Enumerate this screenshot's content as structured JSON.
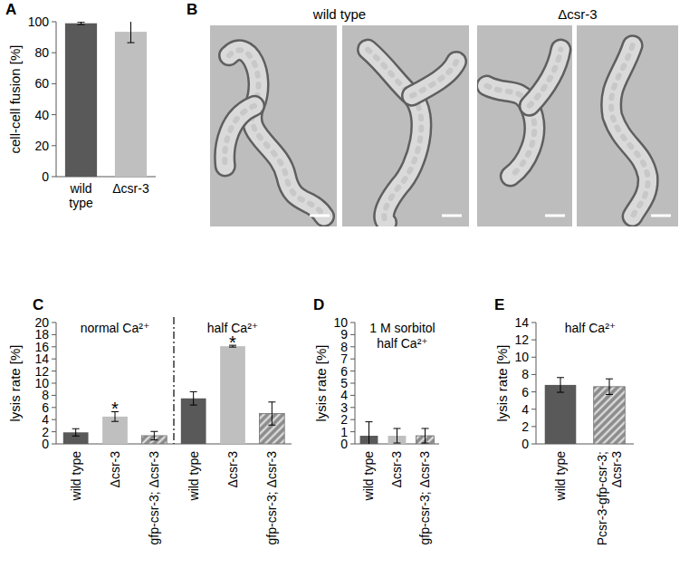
{
  "chart_data": [
    {
      "type": "bar",
      "panel_label": "A",
      "y_label": "cell-cell fusion [%]",
      "categories": [
        "wild type",
        "Δcsr-3"
      ],
      "values": [
        99,
        93.5
      ],
      "errors": [
        0.8,
        7
      ],
      "colors": [
        "#595959",
        "#bfbfbf"
      ],
      "ylim": [
        0,
        100
      ],
      "yticks": [
        0,
        20,
        40,
        60,
        80,
        100
      ]
    },
    {
      "type": "bar",
      "panel_label": "C",
      "y_label": "lysis rate [%]",
      "categories": [
        "wild type",
        "Δcsr-3",
        "gfp-csr-3; Δcsr-3",
        "wild type",
        "Δcsr-3",
        "gfp-csr-3; Δcsr-3"
      ],
      "values": [
        1.9,
        4.5,
        1.35,
        7.5,
        16.1,
        5.0
      ],
      "errors": [
        0.6,
        0.8,
        0.7,
        1.1,
        0.15,
        1.9
      ],
      "colors": [
        "#595959",
        "#bfbfbf",
        "#8c8c8c",
        "#595959",
        "#bfbfbf",
        "#8c8c8c"
      ],
      "groups": [
        {
          "label": "normal Ca²⁺",
          "size": 3
        },
        {
          "label": "half Ca²⁺",
          "size": 3
        }
      ],
      "significance": [
        {
          "text": "*",
          "index": 1
        },
        {
          "text": "*",
          "index": 4
        }
      ],
      "ylim": [
        0,
        20
      ],
      "yticks": [
        0,
        2,
        4,
        6,
        8,
        10,
        12,
        14,
        16,
        18,
        20
      ]
    },
    {
      "type": "bar",
      "panel_label": "D",
      "y_label": "lysis rate [%]",
      "annotations": [
        "1 M sorbitol",
        "half Ca²⁺"
      ],
      "categories": [
        "wild type",
        "Δcsr-3",
        "gfp-csr-3; Δcsr-3"
      ],
      "values": [
        0.67,
        0.67,
        0.67
      ],
      "errors": [
        1.15,
        0.6,
        0.6
      ],
      "colors": [
        "#595959",
        "#bfbfbf",
        "#8c8c8c"
      ],
      "ylim": [
        0,
        10
      ],
      "yticks": [
        0,
        1,
        2,
        3,
        4,
        5,
        6,
        7,
        8,
        9,
        10
      ]
    },
    {
      "type": "bar",
      "panel_label": "E",
      "y_label": "lysis rate [%]",
      "annotations": [
        "half Ca²⁺"
      ],
      "categories": [
        "wild type",
        "Pcsr-3-gfp-csr-3; Δcsr-3"
      ],
      "values": [
        6.8,
        6.6
      ],
      "errors": [
        0.85,
        0.9
      ],
      "colors": [
        "#595959",
        "#8c8c8c"
      ],
      "ylim": [
        0,
        14
      ],
      "yticks": [
        0,
        2,
        4,
        6,
        8,
        10,
        12,
        14
      ]
    }
  ],
  "image_panel": {
    "panel_label": "B",
    "labels": [
      "wild type",
      "Δcsr-3"
    ]
  }
}
